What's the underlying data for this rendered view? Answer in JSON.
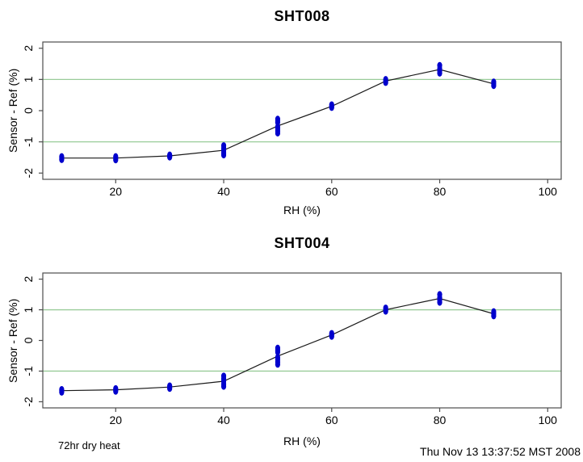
{
  "page": {
    "background": "#ffffff",
    "point_color": "#0000cd",
    "line_color": "#1a1a1a",
    "grid_color": "#99cc99",
    "frame_color": "#4d4d4d"
  },
  "footer": {
    "note": "72hr dry heat",
    "timestamp": "Thu Nov 13 13:37:52 MST 2008"
  },
  "chart_data": [
    {
      "type": "scatter",
      "title": "SHT008",
      "xlabel": "RH (%)",
      "ylabel": "Sensor - Ref (%)",
      "xlim": [
        6.5,
        102.5
      ],
      "ylim": [
        -2.2,
        2.2
      ],
      "xticks": [
        20,
        40,
        60,
        80,
        100
      ],
      "yticks": [
        -2,
        -1,
        0,
        1,
        2
      ],
      "grid_h": [
        -1,
        1
      ],
      "grid_on": "horizontal only",
      "legend": "none",
      "x": [
        10,
        20,
        30,
        40,
        50,
        60,
        70,
        80,
        90
      ],
      "line_means": [
        -1.52,
        -1.52,
        -1.45,
        -1.27,
        -0.49,
        0.14,
        0.95,
        1.32,
        0.86
      ],
      "clusters": [
        {
          "rh": 10,
          "values": [
            -1.47,
            -1.52,
            -1.57
          ]
        },
        {
          "rh": 20,
          "values": [
            -1.47,
            -1.52,
            -1.58
          ]
        },
        {
          "rh": 30,
          "values": [
            -1.42,
            -1.45,
            -1.49
          ]
        },
        {
          "rh": 40,
          "values": [
            -1.12,
            -1.2,
            -1.28,
            -1.36,
            -1.42
          ]
        },
        {
          "rh": 50,
          "values": [
            -0.27,
            -0.33,
            -0.38,
            -0.52,
            -0.58,
            -0.65,
            -0.72
          ]
        },
        {
          "rh": 60,
          "values": [
            0.1,
            0.14,
            0.19
          ]
        },
        {
          "rh": 70,
          "values": [
            0.9,
            0.95,
            1.0
          ]
        },
        {
          "rh": 80,
          "values": [
            1.2,
            1.28,
            1.35,
            1.45
          ]
        },
        {
          "rh": 90,
          "values": [
            0.8,
            0.86,
            0.92
          ]
        }
      ]
    },
    {
      "type": "scatter",
      "title": "SHT004",
      "xlabel": "RH (%)",
      "ylabel": "Sensor - Ref (%)",
      "xlim": [
        6.5,
        102.5
      ],
      "ylim": [
        -2.2,
        2.2
      ],
      "xticks": [
        20,
        40,
        60,
        80,
        100
      ],
      "yticks": [
        -2,
        -1,
        0,
        1,
        2
      ],
      "grid_h": [
        -1,
        1
      ],
      "grid_on": "horizontal only",
      "legend": "none",
      "x": [
        10,
        20,
        30,
        40,
        50,
        60,
        70,
        80,
        90
      ],
      "line_means": [
        -1.64,
        -1.61,
        -1.52,
        -1.33,
        -0.51,
        0.18,
        1.0,
        1.37,
        0.87
      ],
      "clusters": [
        {
          "rh": 10,
          "values": [
            -1.6,
            -1.64,
            -1.69
          ]
        },
        {
          "rh": 20,
          "values": [
            -1.57,
            -1.61,
            -1.66
          ]
        },
        {
          "rh": 30,
          "values": [
            -1.48,
            -1.52,
            -1.57
          ]
        },
        {
          "rh": 40,
          "values": [
            -1.16,
            -1.25,
            -1.33,
            -1.42,
            -1.5
          ]
        },
        {
          "rh": 50,
          "values": [
            -0.25,
            -0.32,
            -0.38,
            -0.55,
            -0.62,
            -0.7,
            -0.78
          ]
        },
        {
          "rh": 60,
          "values": [
            0.13,
            0.18,
            0.23
          ]
        },
        {
          "rh": 70,
          "values": [
            0.95,
            1.0,
            1.06
          ]
        },
        {
          "rh": 80,
          "values": [
            1.24,
            1.32,
            1.4,
            1.5
          ]
        },
        {
          "rh": 90,
          "values": [
            0.8,
            0.87,
            0.94
          ]
        }
      ]
    }
  ]
}
